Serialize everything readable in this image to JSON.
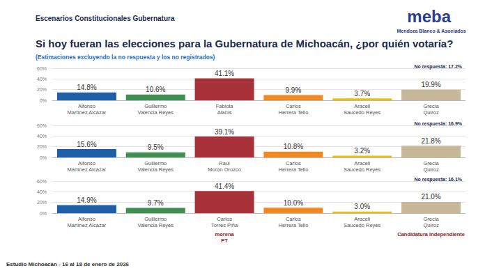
{
  "header": {
    "title": "Escenarios Constitucionales Gubernatura",
    "logo": "meba",
    "logo_sub": "Mendoza Blanco & Asociados",
    "question_parts": [
      "Si hoy fueran las elecciones para la ",
      "Gubernatura de Michoacán",
      ", ¿por quién votaría?"
    ],
    "subtitle": "(Estimaciones excluyendo la no respuesta y los no registrados)"
  },
  "footer": "Estudio Michoacán - 16 al 18 de enero de 2026",
  "chart_data": [
    {
      "type": "bar",
      "categories": [
        "Alfonso\nMartínez Alcázar",
        "Guillermo\nValencia Reyes",
        "Fabiola\nAlanís",
        "Carlos\nHerrera Tello",
        "Araceli\nSaucedo Reyes",
        "Grecia\nQuiroz"
      ],
      "values": [
        14.8,
        10.6,
        41.1,
        9.9,
        3.7,
        19.9
      ],
      "value_labels": [
        "14.8%",
        "10.6%",
        "41.1%",
        "9.9%",
        "3.7%",
        "19.9%"
      ],
      "colors": [
        "#1f5fa8",
        "#3f8f52",
        "#a8323a",
        "#ef8a22",
        "#f0c000",
        "#c8b89a"
      ],
      "ylim": [
        0,
        60
      ],
      "yticks": [
        {
          "value": 0,
          "label": "0%"
        },
        {
          "value": 20,
          "label": "20%"
        },
        {
          "value": 40,
          "label": "40%"
        },
        {
          "value": 60,
          "label": "60%"
        }
      ],
      "grid": true,
      "data_labels": true,
      "annotation": {
        "value": 17.2,
        "label": "No respuesta: 17.2%"
      }
    },
    {
      "type": "bar",
      "categories": [
        "Alfonso\nMartínez Alcázar",
        "Guillermo\nValencia Reyes",
        "Raúl\nMorón Orozco",
        "Carlos\nHerrera Tello",
        "Araceli\nSaucedo Reyes",
        "Grecia\nQuiroz"
      ],
      "values": [
        15.6,
        9.5,
        39.1,
        10.8,
        3.2,
        21.8
      ],
      "value_labels": [
        "15.6%",
        "9.5%",
        "39.1%",
        "10.8%",
        "3.2%",
        "21.8%"
      ],
      "colors": [
        "#1f5fa8",
        "#3f8f52",
        "#a8323a",
        "#ef8a22",
        "#f0c000",
        "#c8b89a"
      ],
      "ylim": [
        0,
        60
      ],
      "yticks": [
        {
          "value": 0,
          "label": "0%"
        },
        {
          "value": 20,
          "label": "20%"
        },
        {
          "value": 40,
          "label": "40%"
        },
        {
          "value": 60,
          "label": "60%"
        }
      ],
      "grid": true,
      "data_labels": true,
      "annotation": {
        "value": 16.9,
        "label": "No respuesta: 16.9%"
      }
    },
    {
      "type": "bar",
      "categories": [
        "Alfonso\nMartínez Alcázar",
        "Guillermo\nValencia Reyes",
        "Carlos\nTorres Piña",
        "Carlos\nHerrera Tello",
        "Araceli\nSaucedo Reyes",
        "Grecia\nQuiroz"
      ],
      "values": [
        14.9,
        9.7,
        41.4,
        10.0,
        3.0,
        21.0
      ],
      "value_labels": [
        "14.9%",
        "9.7%",
        "41.4%",
        "10.0%",
        "3.0%",
        "21.0%"
      ],
      "colors": [
        "#1f5fa8",
        "#3f8f52",
        "#a8323a",
        "#ef8a22",
        "#f0c000",
        "#c8b89a"
      ],
      "ylim": [
        0,
        60
      ],
      "yticks": [
        {
          "value": 0,
          "label": "0%"
        },
        {
          "value": 20,
          "label": "20%"
        },
        {
          "value": 40,
          "label": "40%"
        },
        {
          "value": 60,
          "label": "60%"
        }
      ],
      "grid": true,
      "data_labels": true,
      "annotation": {
        "value": 16.1,
        "label": "No respuesta: 16.1%"
      },
      "parties": [
        null,
        null,
        "morena\nPT",
        null,
        null,
        "Candidatura Independiente"
      ]
    }
  ]
}
